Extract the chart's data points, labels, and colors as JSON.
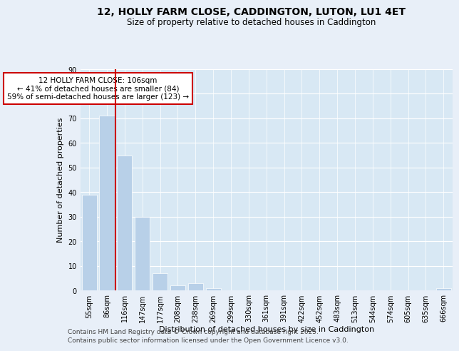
{
  "title": "12, HOLLY FARM CLOSE, CADDINGTON, LUTON, LU1 4ET",
  "subtitle": "Size of property relative to detached houses in Caddington",
  "xlabel": "Distribution of detached houses by size in Caddington",
  "ylabel": "Number of detached properties",
  "categories": [
    "55sqm",
    "86sqm",
    "116sqm",
    "147sqm",
    "177sqm",
    "208sqm",
    "238sqm",
    "269sqm",
    "299sqm",
    "330sqm",
    "361sqm",
    "391sqm",
    "422sqm",
    "452sqm",
    "483sqm",
    "513sqm",
    "544sqm",
    "574sqm",
    "605sqm",
    "635sqm",
    "666sqm"
  ],
  "values": [
    39,
    71,
    55,
    30,
    7,
    2,
    3,
    1,
    0,
    0,
    0,
    0,
    0,
    0,
    0,
    0,
    0,
    0,
    0,
    0,
    1
  ],
  "bar_color": "#b8d0e8",
  "vline_x": 1.5,
  "vline_color": "#cc0000",
  "annotation_text": "12 HOLLY FARM CLOSE: 106sqm\n← 41% of detached houses are smaller (84)\n59% of semi-detached houses are larger (123) →",
  "annotation_box_color": "#ffffff",
  "annotation_box_edge_color": "#cc0000",
  "ylim": [
    0,
    90
  ],
  "yticks": [
    0,
    10,
    20,
    30,
    40,
    50,
    60,
    70,
    80,
    90
  ],
  "footnote1": "Contains HM Land Registry data © Crown copyright and database right 2025.",
  "footnote2": "Contains public sector information licensed under the Open Government Licence v3.0.",
  "bg_color": "#e8eff8",
  "plot_bg_color": "#d8e8f4",
  "grid_color": "#c0d4e8",
  "title_fontsize": 10,
  "subtitle_fontsize": 8.5,
  "axis_label_fontsize": 8,
  "tick_fontsize": 7,
  "annotation_fontsize": 7.5,
  "footnote_fontsize": 6.5
}
